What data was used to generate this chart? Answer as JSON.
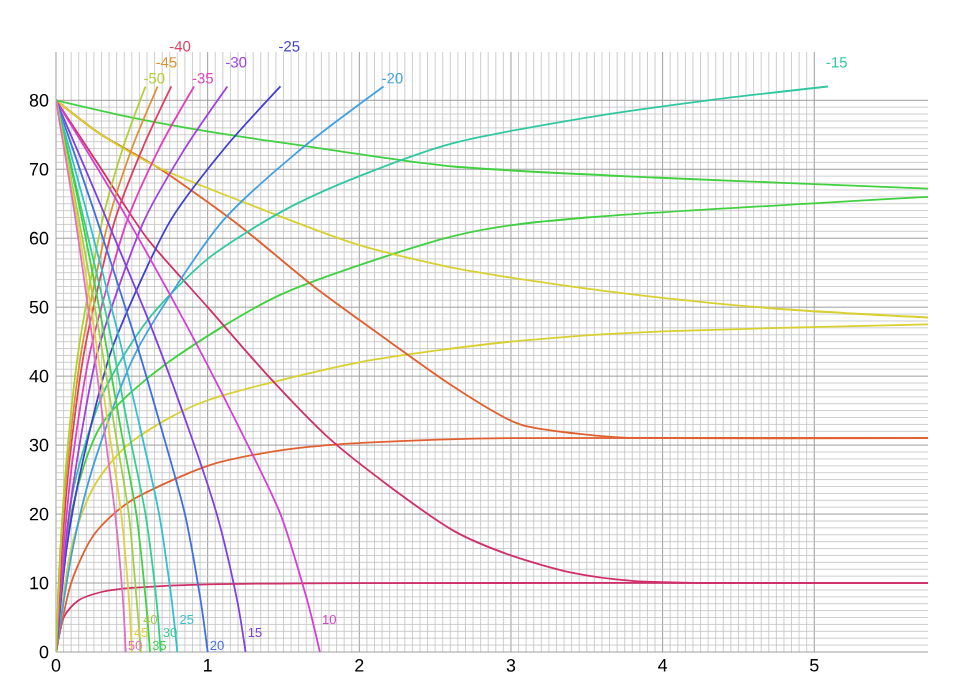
{
  "chart_data": {
    "type": "line",
    "xlim": [
      0,
      5.75
    ],
    "ylim": [
      0,
      87
    ],
    "xticks": [
      0,
      1,
      2,
      3,
      4,
      5
    ],
    "yticks": [
      0,
      10,
      20,
      30,
      40,
      50,
      60,
      70,
      80
    ],
    "grid": true,
    "series": [
      {
        "color": "#d0306a",
        "x": [
          0,
          0.05,
          0.15,
          0.3,
          0.5,
          1,
          2,
          5.75
        ],
        "values": [
          0,
          5,
          7.5,
          8.7,
          9.3,
          9.8,
          10,
          10
        ]
      },
      {
        "color": "#e06030",
        "x": [
          0,
          0.1,
          0.25,
          0.5,
          1,
          1.5,
          2,
          3,
          5.75
        ],
        "values": [
          0,
          10,
          17,
          22,
          27,
          29.3,
          30.3,
          31,
          31
        ]
      },
      {
        "color": "#d8d030",
        "x": [
          0,
          0.1,
          0.25,
          0.5,
          1,
          2,
          3,
          4,
          5.75
        ],
        "values": [
          0,
          15,
          24,
          30.5,
          36.5,
          42,
          45,
          46.5,
          47.5
        ]
      },
      {
        "color": "#40d040",
        "x": [
          0,
          0.1,
          0.3,
          0.74,
          1.5,
          2.62,
          3.5,
          5.75
        ],
        "values": [
          0,
          20,
          33,
          42,
          52,
          60.3,
          63,
          66
        ]
      },
      {
        "color": "#d0306a",
        "x": [
          0,
          0.3,
          0.6,
          1,
          1.4,
          1.8,
          2.2,
          2.62,
          3,
          3.4,
          3.8,
          4.3,
          5.75
        ],
        "values": [
          80,
          70,
          60,
          50,
          40,
          31,
          24,
          17.6,
          14,
          11.5,
          10.3,
          10,
          10
        ]
      },
      {
        "color": "#e06030",
        "x": [
          0,
          0.3,
          0.69,
          1.2,
          1.7,
          2.2,
          2.62,
          3.06,
          3.6,
          4,
          5.75
        ],
        "values": [
          80,
          75,
          70,
          62,
          53,
          45,
          38.5,
          33,
          31.3,
          31,
          31
        ]
      },
      {
        "color": "#d8d030",
        "x": [
          0,
          0.3,
          0.7,
          1.44,
          2,
          2.62,
          3.3,
          3.94,
          4.8,
          5.75
        ],
        "values": [
          80,
          75,
          70,
          63.5,
          59,
          55.7,
          53.3,
          51.5,
          49.7,
          48.5
        ]
      },
      {
        "color": "#40d040",
        "x": [
          0,
          0.5,
          1,
          1.57,
          2.62,
          3.94,
          5.75
        ],
        "values": [
          80,
          77.5,
          75.5,
          73.6,
          70.4,
          68.8,
          67.2
        ]
      },
      {
        "color": "#30c8a0",
        "x": [
          0,
          0.1,
          0.3,
          0.6,
          1,
          1.5,
          2,
          2.62,
          3.5,
          4.3,
          5.09
        ],
        "values": [
          0,
          22,
          37,
          48,
          57,
          64,
          69,
          73.8,
          77.5,
          80,
          82
        ]
      },
      {
        "color": "#40a0e0",
        "x": [
          0,
          0.11,
          0.26,
          0.54,
          1.08,
          1.62,
          2.16
        ],
        "values": [
          0,
          15,
          28,
          44,
          62,
          73,
          82
        ]
      },
      {
        "color": "#4040d0",
        "x": [
          0,
          0.07,
          0.18,
          0.37,
          0.74,
          1.11,
          1.48
        ],
        "values": [
          0,
          15,
          28,
          44,
          62,
          73,
          82
        ]
      },
      {
        "color": "#a040e0",
        "x": [
          0,
          0.06,
          0.14,
          0.28,
          0.57,
          0.85,
          1.13
        ],
        "values": [
          0,
          15,
          28,
          44,
          62,
          73,
          82
        ]
      },
      {
        "color": "#e040c0",
        "x": [
          0,
          0.05,
          0.11,
          0.23,
          0.46,
          0.68,
          0.91
        ],
        "values": [
          0,
          15,
          28,
          44,
          62,
          73,
          82
        ]
      },
      {
        "color": "#e04060",
        "x": [
          0,
          0.04,
          0.09,
          0.19,
          0.38,
          0.57,
          0.76
        ],
        "values": [
          0,
          15,
          28,
          44,
          62,
          73,
          82
        ]
      },
      {
        "color": "#e09030",
        "x": [
          0,
          0.03,
          0.08,
          0.17,
          0.34,
          0.5,
          0.67
        ],
        "values": [
          0,
          15,
          28,
          44,
          62,
          73,
          82
        ]
      },
      {
        "color": "#b0d030",
        "x": [
          0,
          0.03,
          0.07,
          0.15,
          0.3,
          0.44,
          0.59
        ],
        "values": [
          0,
          15,
          28,
          44,
          62,
          73,
          82
        ]
      },
      {
        "color": "#d63fd6",
        "x": [
          0,
          0.44,
          0.87,
          1.22,
          1.48,
          1.65,
          1.74
        ],
        "values": [
          80,
          64,
          47,
          32,
          20,
          8,
          0
        ]
      },
      {
        "color": "#8040e0",
        "x": [
          0,
          0.31,
          0.63,
          0.88,
          1.06,
          1.19,
          1.25
        ],
        "values": [
          80,
          64,
          47,
          32,
          20,
          8,
          0
        ]
      },
      {
        "color": "#4070e0",
        "x": [
          0,
          0.25,
          0.5,
          0.7,
          0.85,
          0.95,
          1
        ],
        "values": [
          80,
          64,
          47,
          32,
          20,
          8,
          0
        ]
      },
      {
        "color": "#30c0d0",
        "x": [
          0,
          0.2,
          0.4,
          0.56,
          0.68,
          0.76,
          0.8
        ],
        "values": [
          80,
          64,
          47,
          32,
          20,
          8,
          0
        ]
      },
      {
        "color": "#30d090",
        "x": [
          0,
          0.17,
          0.35,
          0.48,
          0.59,
          0.66,
          0.69
        ],
        "values": [
          80,
          64,
          47,
          32,
          20,
          8,
          0
        ]
      },
      {
        "color": "#40d040",
        "x": [
          0,
          0.16,
          0.31,
          0.43,
          0.53,
          0.59,
          0.62
        ],
        "values": [
          80,
          64,
          47,
          32,
          20,
          8,
          0
        ]
      },
      {
        "color": "#a0d040",
        "x": [
          0,
          0.14,
          0.28,
          0.39,
          0.48,
          0.53,
          0.56
        ],
        "values": [
          80,
          64,
          47,
          32,
          20,
          8,
          0
        ]
      },
      {
        "color": "#e0d040",
        "x": [
          0,
          0.13,
          0.25,
          0.35,
          0.43,
          0.48,
          0.5
        ],
        "values": [
          80,
          64,
          47,
          32,
          20,
          8,
          0
        ]
      },
      {
        "color": "#e070c0",
        "x": [
          0,
          0.12,
          0.23,
          0.32,
          0.39,
          0.44,
          0.46
        ],
        "values": [
          80,
          64,
          47,
          32,
          20,
          8,
          0
        ]
      }
    ],
    "annotations": [
      {
        "text": "-50",
        "x": 0.59,
        "y": 82
      },
      {
        "text": "-45",
        "x": 0.67,
        "y": 82
      },
      {
        "text": "-40",
        "x": 0.76,
        "y": 82
      },
      {
        "text": "-35",
        "x": 0.91,
        "y": 82
      },
      {
        "text": "-30",
        "x": 1.13,
        "y": 82
      },
      {
        "text": "-25",
        "x": 1.48,
        "y": 82
      },
      {
        "text": "-20",
        "x": 2.16,
        "y": 82
      },
      {
        "text": "-15",
        "x": 5.09,
        "y": 82
      },
      {
        "text": "50",
        "x": 0.46,
        "y": 0
      },
      {
        "text": "45",
        "x": 0.5,
        "y": 0
      },
      {
        "text": "40",
        "x": 0.56,
        "y": 0
      },
      {
        "text": "35",
        "x": 0.62,
        "y": 0
      },
      {
        "text": "30",
        "x": 0.69,
        "y": 0
      },
      {
        "text": "25",
        "x": 0.8,
        "y": 0
      },
      {
        "text": "20",
        "x": 1,
        "y": 0
      },
      {
        "text": "15",
        "x": 1.25,
        "y": 0
      },
      {
        "text": "10",
        "x": 1.74,
        "y": 0
      }
    ]
  }
}
